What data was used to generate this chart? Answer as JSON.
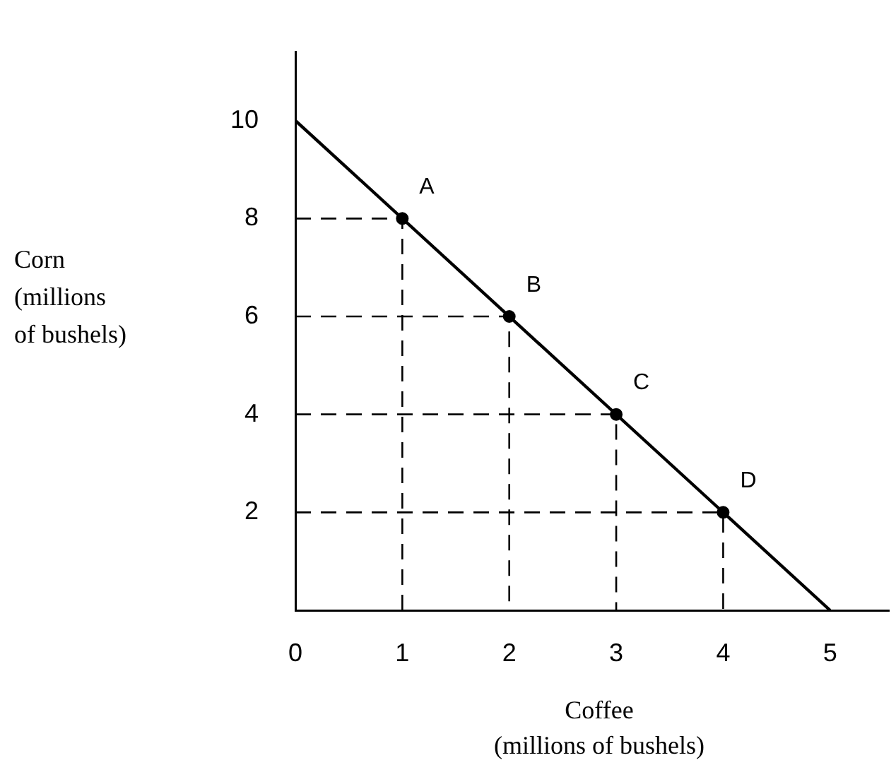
{
  "chart_data": {
    "type": "line",
    "xlabel": "Coffee\n(millions of bushels)",
    "ylabel": "Corn\n(millions\nof bushels)",
    "xlim": [
      0,
      5.55
    ],
    "ylim": [
      0,
      11.4
    ],
    "xticks": [
      0,
      1,
      2,
      3,
      4,
      5
    ],
    "yticks": [
      2,
      4,
      6,
      8,
      10
    ],
    "grid": false,
    "legend": false,
    "series": [
      {
        "color": "#000000",
        "x": [
          0,
          5
        ],
        "values": [
          10,
          0
        ],
        "marker": "none",
        "line_style": "solid"
      },
      {
        "color": "#000000",
        "x": [
          0,
          1,
          1
        ],
        "values": [
          8,
          8,
          0
        ],
        "marker": "none",
        "line_style": "dashed"
      },
      {
        "color": "#000000",
        "x": [
          0,
          2,
          2
        ],
        "values": [
          6,
          6,
          0
        ],
        "marker": "none",
        "line_style": "dashed"
      },
      {
        "color": "#000000",
        "x": [
          0,
          3,
          3
        ],
        "values": [
          4,
          4,
          0
        ],
        "marker": "none",
        "line_style": "dashed"
      },
      {
        "color": "#000000",
        "x": [
          0,
          4,
          4
        ],
        "values": [
          2,
          2,
          0
        ],
        "marker": "none",
        "line_style": "dashed"
      },
      {
        "type": "scatter",
        "color": "#000000",
        "x": [
          1,
          2,
          3,
          4
        ],
        "values": [
          8,
          6,
          4,
          2
        ],
        "marker": "circle"
      }
    ],
    "annotations": [
      {
        "text": "A",
        "x": 1,
        "y": 8
      },
      {
        "text": "B",
        "x": 2,
        "y": 6
      },
      {
        "text": "C",
        "x": 3,
        "y": 4
      },
      {
        "text": "D",
        "x": 4,
        "y": 2
      }
    ]
  }
}
